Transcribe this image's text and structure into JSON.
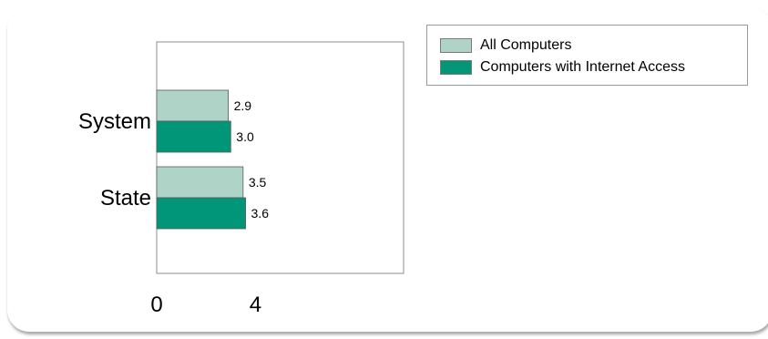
{
  "chart_data": {
    "type": "bar",
    "orientation": "horizontal",
    "categories": [
      "System",
      "State"
    ],
    "series": [
      {
        "name": "All Computers",
        "values": [
          2.9,
          3.5
        ],
        "color": "#afd4c7"
      },
      {
        "name": "Computers with Internet Access",
        "values": [
          3.0,
          3.6
        ],
        "color": "#009677"
      }
    ],
    "value_labels": [
      [
        "2.9",
        "3.5"
      ],
      [
        "3.0",
        "3.6"
      ]
    ],
    "xlim": [
      0,
      10
    ],
    "x_ticks": [
      0,
      4
    ],
    "title": "",
    "xlabel": "",
    "ylabel": "",
    "grid": false,
    "legend_position": "top-right"
  }
}
